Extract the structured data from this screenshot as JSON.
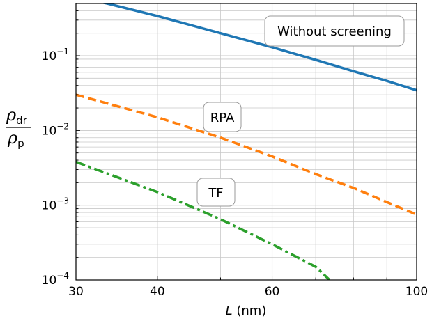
{
  "chart_data": {
    "type": "line",
    "x_scale": "log",
    "y_scale": "log",
    "xlim": [
      30,
      100
    ],
    "ylim": [
      0.0001,
      0.5
    ],
    "grid": true,
    "x_ticks": [
      {
        "value": 30,
        "label": "30"
      },
      {
        "value": 40,
        "label": "40"
      },
      {
        "value": 60,
        "label": "60"
      },
      {
        "value": 100,
        "label": "100"
      }
    ],
    "y_ticks": [
      {
        "value": 0.0001,
        "base": "10",
        "exp": "−4"
      },
      {
        "value": 0.001,
        "base": "10",
        "exp": "−3"
      },
      {
        "value": 0.01,
        "base": "10",
        "exp": "−2"
      },
      {
        "value": 0.1,
        "base": "10",
        "exp": "−1"
      }
    ],
    "xlabel": {
      "var": "L",
      "unit": " (nm)"
    },
    "ylabel": {
      "num": "ρ",
      "num_sub": "dr",
      "den": "ρ",
      "den_sub": "p"
    },
    "series": [
      {
        "name": "Without screening",
        "color": "#1f77b4",
        "dash": "solid",
        "x": [
          30,
          33.5,
          40,
          50,
          60,
          70,
          80,
          90,
          100
        ],
        "y": [
          0.62,
          0.5,
          0.34,
          0.2,
          0.13,
          0.088,
          0.062,
          0.046,
          0.0345
        ]
      },
      {
        "name": "RPA",
        "color": "#ff7f0e",
        "dash": "dashed",
        "x": [
          30,
          40,
          50,
          60,
          70,
          80,
          90,
          100
        ],
        "y": [
          0.03,
          0.015,
          0.008,
          0.0045,
          0.0026,
          0.0017,
          0.0011,
          0.00075
        ]
      },
      {
        "name": "TF",
        "color": "#2ca02c",
        "dash": "dashdot",
        "x": [
          30,
          40,
          50,
          60,
          70,
          73.5
        ],
        "y": [
          0.0038,
          0.0015,
          0.00065,
          0.0003,
          0.00015,
          0.0001
        ]
      }
    ],
    "annotations": [
      {
        "text": "Without screening",
        "series": "Without screening"
      },
      {
        "text": "RPA",
        "series": "RPA"
      },
      {
        "text": "TF",
        "series": "TF"
      }
    ]
  }
}
